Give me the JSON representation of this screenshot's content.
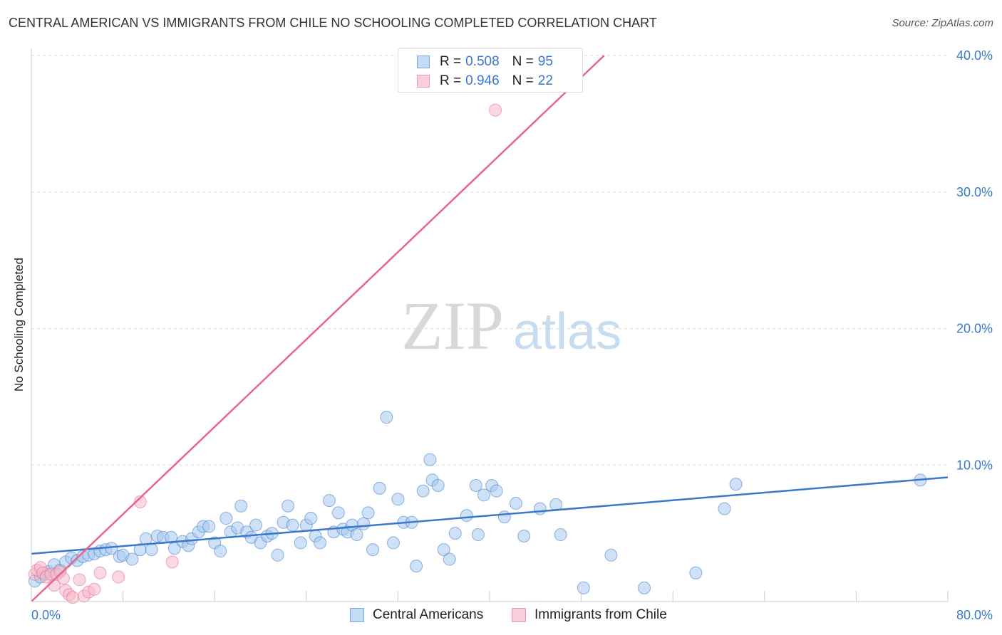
{
  "title": "CENTRAL AMERICAN VS IMMIGRANTS FROM CHILE NO SCHOOLING COMPLETED CORRELATION CHART",
  "source": "Source: ZipAtlas.com",
  "watermark": {
    "zip": "ZIP",
    "atlas": "atlas"
  },
  "legend_top": [
    {
      "r_label": "R =",
      "r_value": "0.508",
      "n_label": "N =",
      "n_value": "95",
      "color": "#a8c8f0"
    },
    {
      "r_label": "R =",
      "r_value": "0.946",
      "n_label": "N =",
      "n_value": "22",
      "color": "#f5b8c8"
    }
  ],
  "legend_bottom": [
    {
      "label": "Central Americans",
      "color": "#a8c8f0"
    },
    {
      "label": "Immigrants from Chile",
      "color": "#f5b8c8"
    }
  ],
  "chart_data": {
    "type": "scatter",
    "title": "CENTRAL AMERICAN VS IMMIGRANTS FROM CHILE NO SCHOOLING COMPLETED CORRELATION CHART",
    "xlabel": "",
    "ylabel": "No Schooling Completed",
    "xlim": [
      0,
      80
    ],
    "ylim": [
      0,
      40
    ],
    "x_tick_labels": [
      "0.0%",
      "80.0%"
    ],
    "y_ticks": [
      10,
      20,
      30,
      40
    ],
    "y_tick_labels": [
      "10.0%",
      "20.0%",
      "30.0%",
      "40.0%"
    ],
    "grid": true,
    "legend_position": "top-center",
    "series": [
      {
        "name": "Central Americans",
        "color": "#3a78c9",
        "fill": "#a8c8f0",
        "trend": [
          [
            0,
            3.5
          ],
          [
            80,
            9.1
          ]
        ],
        "points": [
          [
            0.3,
            1.5
          ],
          [
            0.8,
            1.8
          ],
          [
            1.2,
            2.0
          ],
          [
            1.5,
            2.2
          ],
          [
            2.0,
            2.7
          ],
          [
            2.5,
            2.3
          ],
          [
            3.0,
            2.9
          ],
          [
            3.5,
            3.2
          ],
          [
            4.0,
            3.0
          ],
          [
            4.5,
            3.3
          ],
          [
            5.0,
            3.4
          ],
          [
            5.5,
            3.5
          ],
          [
            6.0,
            3.7
          ],
          [
            6.5,
            3.8
          ],
          [
            7.0,
            3.9
          ],
          [
            7.7,
            3.3
          ],
          [
            8.0,
            3.4
          ],
          [
            8.8,
            3.1
          ],
          [
            9.5,
            3.8
          ],
          [
            10.0,
            4.6
          ],
          [
            10.5,
            3.8
          ],
          [
            11.0,
            4.8
          ],
          [
            11.5,
            4.7
          ],
          [
            12.2,
            4.7
          ],
          [
            12.5,
            3.9
          ],
          [
            13.2,
            4.4
          ],
          [
            13.7,
            4.1
          ],
          [
            14.0,
            4.6
          ],
          [
            14.6,
            5.1
          ],
          [
            15.0,
            5.5
          ],
          [
            15.5,
            5.5
          ],
          [
            16.0,
            4.3
          ],
          [
            16.5,
            3.7
          ],
          [
            17.0,
            6.1
          ],
          [
            17.4,
            5.1
          ],
          [
            18.0,
            5.4
          ],
          [
            18.3,
            7.0
          ],
          [
            18.8,
            5.1
          ],
          [
            19.2,
            4.7
          ],
          [
            19.6,
            5.6
          ],
          [
            20.0,
            4.3
          ],
          [
            20.6,
            4.8
          ],
          [
            21.0,
            5.0
          ],
          [
            21.5,
            3.4
          ],
          [
            22.0,
            5.8
          ],
          [
            22.4,
            7.0
          ],
          [
            22.8,
            5.6
          ],
          [
            23.5,
            4.3
          ],
          [
            24.0,
            5.6
          ],
          [
            24.4,
            6.1
          ],
          [
            24.8,
            4.8
          ],
          [
            25.2,
            4.3
          ],
          [
            26.0,
            7.4
          ],
          [
            26.4,
            5.1
          ],
          [
            26.8,
            6.5
          ],
          [
            27.2,
            5.3
          ],
          [
            27.6,
            5.1
          ],
          [
            28.0,
            5.6
          ],
          [
            28.4,
            4.9
          ],
          [
            29.0,
            5.7
          ],
          [
            29.4,
            6.5
          ],
          [
            29.8,
            3.8
          ],
          [
            30.4,
            8.3
          ],
          [
            31.0,
            13.5
          ],
          [
            31.6,
            4.3
          ],
          [
            32.0,
            7.5
          ],
          [
            32.5,
            5.8
          ],
          [
            33.2,
            5.8
          ],
          [
            33.6,
            2.6
          ],
          [
            34.2,
            8.1
          ],
          [
            34.8,
            10.4
          ],
          [
            35.0,
            8.9
          ],
          [
            35.5,
            8.5
          ],
          [
            36.0,
            3.8
          ],
          [
            36.5,
            3.1
          ],
          [
            37.0,
            5.0
          ],
          [
            38.0,
            6.3
          ],
          [
            38.8,
            8.5
          ],
          [
            39.0,
            4.9
          ],
          [
            39.5,
            7.8
          ],
          [
            40.2,
            8.5
          ],
          [
            40.6,
            8.1
          ],
          [
            41.3,
            6.2
          ],
          [
            42.3,
            7.2
          ],
          [
            43.0,
            4.8
          ],
          [
            44.4,
            6.8
          ],
          [
            45.8,
            7.1
          ],
          [
            46.2,
            4.9
          ],
          [
            48.2,
            1.0
          ],
          [
            50.6,
            3.4
          ],
          [
            53.5,
            1.0
          ],
          [
            58.0,
            2.1
          ],
          [
            60.5,
            6.8
          ],
          [
            61.5,
            8.6
          ],
          [
            77.6,
            8.9
          ]
        ]
      },
      {
        "name": "Immigrants from Chile",
        "color": "#e8648c",
        "fill": "#f5b8c8",
        "trend": [
          [
            0,
            0
          ],
          [
            50,
            40
          ]
        ],
        "points": [
          [
            0.3,
            2.0
          ],
          [
            0.5,
            2.3
          ],
          [
            0.8,
            2.5
          ],
          [
            1.0,
            2.1
          ],
          [
            1.3,
            1.8
          ],
          [
            1.7,
            2.0
          ],
          [
            2.0,
            1.2
          ],
          [
            2.2,
            2.0
          ],
          [
            2.5,
            2.2
          ],
          [
            2.8,
            1.7
          ],
          [
            3.0,
            0.8
          ],
          [
            3.3,
            0.5
          ],
          [
            3.6,
            0.3
          ],
          [
            4.2,
            1.6
          ],
          [
            4.6,
            0.4
          ],
          [
            5.0,
            0.7
          ],
          [
            5.5,
            0.9
          ],
          [
            6.0,
            2.1
          ],
          [
            7.6,
            1.8
          ],
          [
            9.5,
            7.3
          ],
          [
            12.3,
            2.9
          ],
          [
            40.5,
            36.0
          ]
        ]
      }
    ]
  }
}
